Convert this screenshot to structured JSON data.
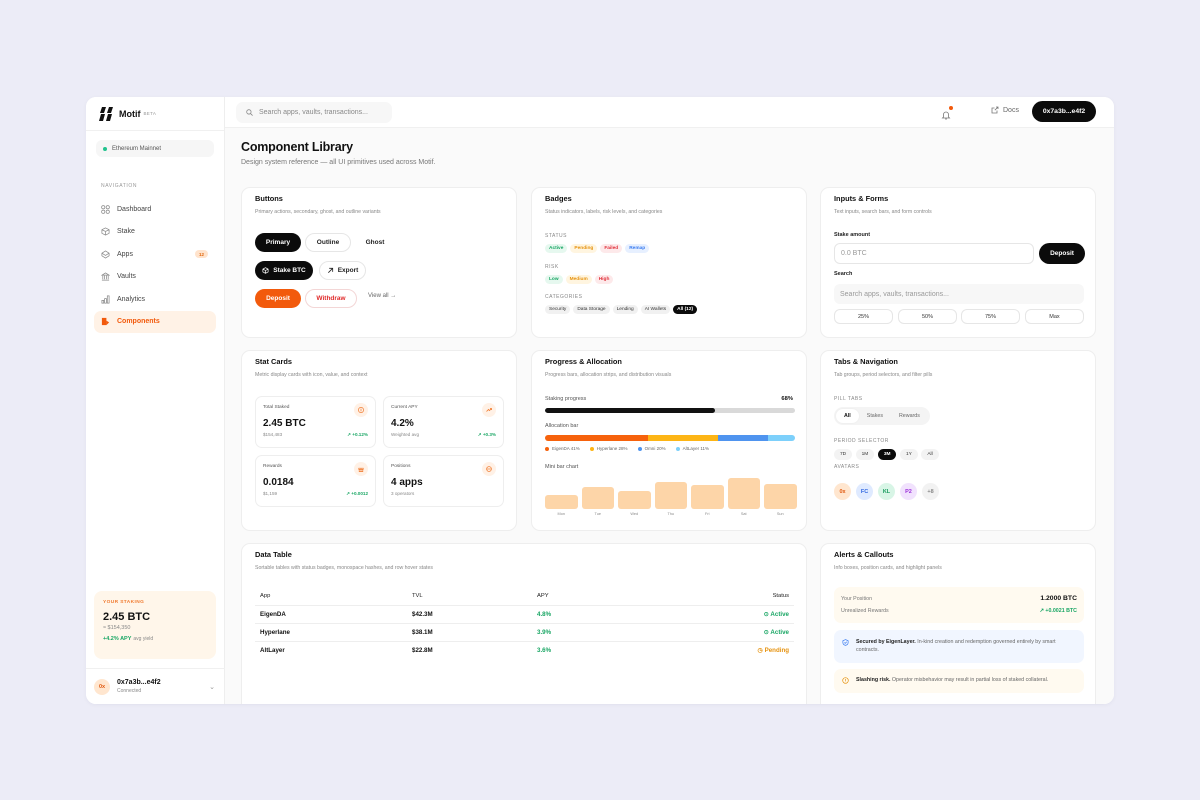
{
  "app": {
    "name": "Motif",
    "tag": "BETA"
  },
  "sidebar": {
    "network": "Ethereum Mainnet",
    "nav_label": "NAVIGATION",
    "items": [
      {
        "label": "Dashboard",
        "icon": "grid-icon"
      },
      {
        "label": "Stake",
        "icon": "cube-icon"
      },
      {
        "label": "Apps",
        "icon": "box-icon",
        "badge": "12"
      },
      {
        "label": "Vaults",
        "icon": "bank-icon"
      },
      {
        "label": "Analytics",
        "icon": "bar-chart-icon"
      },
      {
        "label": "Components",
        "icon": "components-icon",
        "active": true
      }
    ],
    "staking": {
      "label": "YOUR STAKING",
      "value": "2.45 BTC",
      "usd": "≈ $154,350",
      "apy": "+4.2% APY",
      "apy_note": "avg yield"
    },
    "wallet": {
      "avatar": "0x",
      "address": "0x7a3b...e4f2",
      "status": "Connected"
    }
  },
  "topbar": {
    "search_placeholder": "Search apps, vaults, transactions...",
    "docs_label": "Docs",
    "wallet_label": "0x7a3b...e4f2"
  },
  "page": {
    "title": "Component Library",
    "subtitle": "Design system reference — all UI primitives used across Motif."
  },
  "buttons_card": {
    "title": "Buttons",
    "desc": "Primary actions, secondary, ghost, and outline variants",
    "primary": "Primary",
    "outline": "Outline",
    "ghost": "Ghost",
    "stake": "Stake BTC",
    "export": "Export",
    "deposit": "Deposit",
    "withdraw": "Withdraw",
    "view_all": "View all →"
  },
  "badges_card": {
    "title": "Badges",
    "desc": "Status indicators, labels, risk levels, and categories",
    "status_label": "STATUS",
    "status": [
      "Active",
      "Pending",
      "Failed",
      "Remap"
    ],
    "risk_label": "RISK",
    "risk": [
      "Low",
      "Medium",
      "High"
    ],
    "categories_label": "CATEGORIES",
    "categories": [
      "Security",
      "Data Storage",
      "Lending",
      "AI Wallets",
      "All (12)"
    ]
  },
  "inputs_card": {
    "title": "Inputs & Forms",
    "desc": "Text inputs, search bars, and form controls",
    "stake_label": "Stake amount",
    "stake_placeholder": "0.0 BTC",
    "deposit": "Deposit",
    "search_label": "Search",
    "search_placeholder": "Search apps, vaults, transactions...",
    "pcts": [
      "25%",
      "50%",
      "75%",
      "Max"
    ]
  },
  "stats_card": {
    "title": "Stat Cards",
    "desc": "Metric display cards with icon, value, and context",
    "items": [
      {
        "label": "Total Staked",
        "value": "2.45 BTC",
        "sub": "$154,483",
        "delta": "↗ +0.12%",
        "icon": "bitcoin-icon"
      },
      {
        "label": "Current APY",
        "value": "4.2%",
        "sub": "Weighted avg",
        "delta": "↗ +0.3%",
        "icon": "trend-up-icon"
      },
      {
        "label": "Rewards",
        "value": "0.0184",
        "sub": "$1,159",
        "delta": "↗ +0.0012",
        "icon": "gift-icon"
      },
      {
        "label": "Positions",
        "value": "4 apps",
        "sub": "3 operators",
        "delta": "",
        "icon": "layers-icon"
      }
    ]
  },
  "progress_card": {
    "title": "Progress & Allocation",
    "desc": "Progress bars, allocation strips, and distribution visuals",
    "progress_label": "Staking progress",
    "progress_value": "68%",
    "progress_pct": 68,
    "alloc_label": "Allocation bar",
    "alloc": [
      {
        "name": "EigenDA 41%",
        "pct": 41,
        "color": "#f6620c"
      },
      {
        "name": "Hyperlane 28%",
        "pct": 28,
        "color": "#fdb515"
      },
      {
        "name": "Omni 20%",
        "pct": 20,
        "color": "#4f94ef"
      },
      {
        "name": "AltLayer 11%",
        "pct": 11,
        "color": "#7dd0fb"
      }
    ],
    "mini_label": "Mini bar chart"
  },
  "chart_data": {
    "type": "bar",
    "title": "Mini bar chart",
    "categories": [
      "Mon",
      "Tue",
      "Wed",
      "Thu",
      "Fri",
      "Sat",
      "Sun"
    ],
    "values": [
      45,
      70,
      58,
      88,
      76,
      100,
      80
    ],
    "xlabel": "",
    "ylabel": "",
    "ylim": [
      0,
      100
    ]
  },
  "tabs_card": {
    "title": "Tabs & Navigation",
    "desc": "Tab groups, period selectors, and filter pills",
    "pill_label": "PILL TABS",
    "pills": [
      "All",
      "Stakes",
      "Rewards"
    ],
    "period_label": "PERIOD SELECTOR",
    "periods": [
      "7D",
      "1M",
      "3M",
      "1Y",
      "All"
    ],
    "avatars_label": "AVATARS",
    "avatars": [
      {
        "t": "0x",
        "bg": "#ffe6cf",
        "fg": "#e0580f"
      },
      {
        "t": "FC",
        "bg": "#dfeaff",
        "fg": "#2f66e0"
      },
      {
        "t": "KL",
        "bg": "#d8f5e6",
        "fg": "#169a5c"
      },
      {
        "t": "P2",
        "bg": "#f1e2fd",
        "fg": "#9b2fd9"
      },
      {
        "t": "+8",
        "bg": "#f2f2f2",
        "fg": "#888"
      }
    ]
  },
  "table_card": {
    "title": "Data Table",
    "desc": "Sortable tables with status badges, monospace hashes, and row hover states",
    "headers": [
      "App",
      "TVL",
      "APY",
      "Status"
    ],
    "rows": [
      {
        "app": "EigenDA",
        "tvl": "$42.3M",
        "apy": "4.8%",
        "status": "Active"
      },
      {
        "app": "Hyperlane",
        "tvl": "$38.1M",
        "apy": "3.9%",
        "status": "Active"
      },
      {
        "app": "AltLayer",
        "tvl": "$22.8M",
        "apy": "3.6%",
        "status": "Pending"
      }
    ]
  },
  "alerts_card": {
    "title": "Alerts & Callouts",
    "desc": "Info boxes, position cards, and highlight panels",
    "position_label": "Your Position",
    "position_value": "1.2000 BTC",
    "rewards_label": "Unrealized Rewards",
    "rewards_value": "↗ +0.0021 BTC",
    "info_bold": "Secured by EigenLayer.",
    "info_text": " In-kind creation and redemption governed entirely by smart contracts.",
    "warn_bold": "Slashing risk.",
    "warn_text": " Operator misbehavior may result in partial loss of staked collateral."
  }
}
